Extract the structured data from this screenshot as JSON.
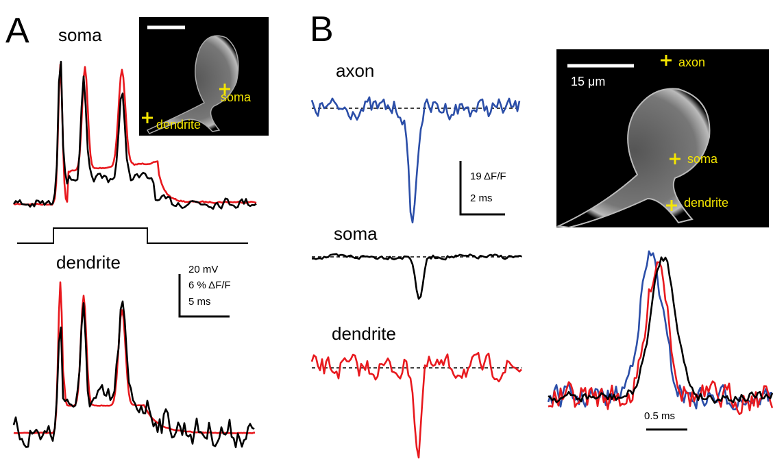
{
  "panel_a": {
    "label": "A",
    "soma_title": "soma",
    "dendrite_title": "dendrite",
    "inset": {
      "soma": "soma",
      "dendrite": "dendrite"
    },
    "scale": {
      "voltage": "20 mV",
      "fluorescence": "6 % ΔF/F",
      "time": "5 ms"
    }
  },
  "panel_b": {
    "label": "B",
    "traces": {
      "axon": "axon",
      "soma": "soma",
      "dendrite": "dendrite"
    },
    "scale": {
      "fluorescence": "19 ΔF/F",
      "time": "2 ms"
    },
    "image": {
      "scale": "15 μm",
      "axon": "axon",
      "soma": "soma",
      "dendrite": "dendrite"
    },
    "overlay_scale": "0.5 ms"
  }
}
